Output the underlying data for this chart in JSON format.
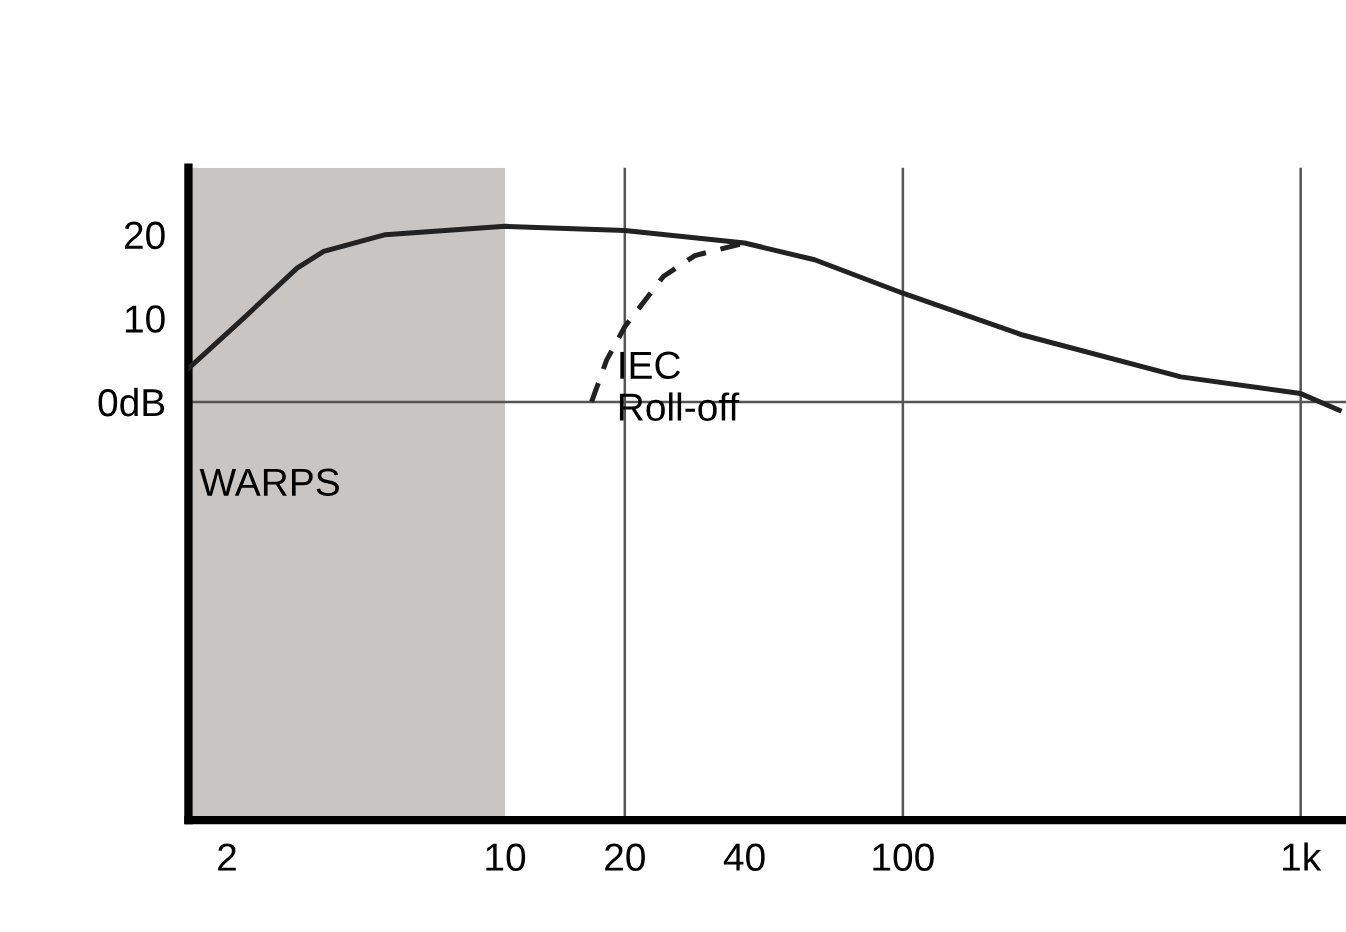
{
  "chart_data": {
    "type": "line",
    "log": "x",
    "xlim": [
      1.6,
      1300
    ],
    "ylim": [
      -50,
      28
    ],
    "xticks": [
      2,
      10,
      20,
      40,
      100,
      {
        "value": 1000,
        "label": "1k"
      }
    ],
    "yticks": [
      {
        "value": 0,
        "label": "0dB"
      },
      10,
      20
    ],
    "grid": false,
    "marker": "none",
    "ref_lines": [
      {
        "axis": "x",
        "value": 20,
        "color": "#555555"
      },
      {
        "axis": "x",
        "value": 100,
        "color": "#555555"
      },
      {
        "axis": "x",
        "value": 1000,
        "color": "#555555"
      },
      {
        "axis": "y",
        "value": 0,
        "color": "#555555"
      }
    ],
    "bands": [
      {
        "axis": "x",
        "from": 1.6,
        "to": 10,
        "label": "WARPS",
        "color": "#c8c5c2"
      }
    ],
    "series": [
      {
        "color": "#222222",
        "line_style": "solid",
        "x": [
          1.6,
          2.2,
          3,
          3.5,
          5,
          10,
          20,
          40,
          60,
          100,
          200,
          500,
          1000,
          1250
        ],
        "values": [
          4,
          10,
          16,
          18,
          20,
          21,
          20.5,
          19,
          17,
          13,
          8,
          3,
          1,
          -1
        ]
      },
      {
        "color": "#222222",
        "line_style": "dashed",
        "x": [
          16.5,
          18,
          20,
          25,
          30,
          40
        ],
        "values": [
          0,
          5,
          9,
          15,
          17.5,
          19
        ]
      }
    ],
    "annotations": [
      "IEC\nRoll-off"
    ]
  }
}
